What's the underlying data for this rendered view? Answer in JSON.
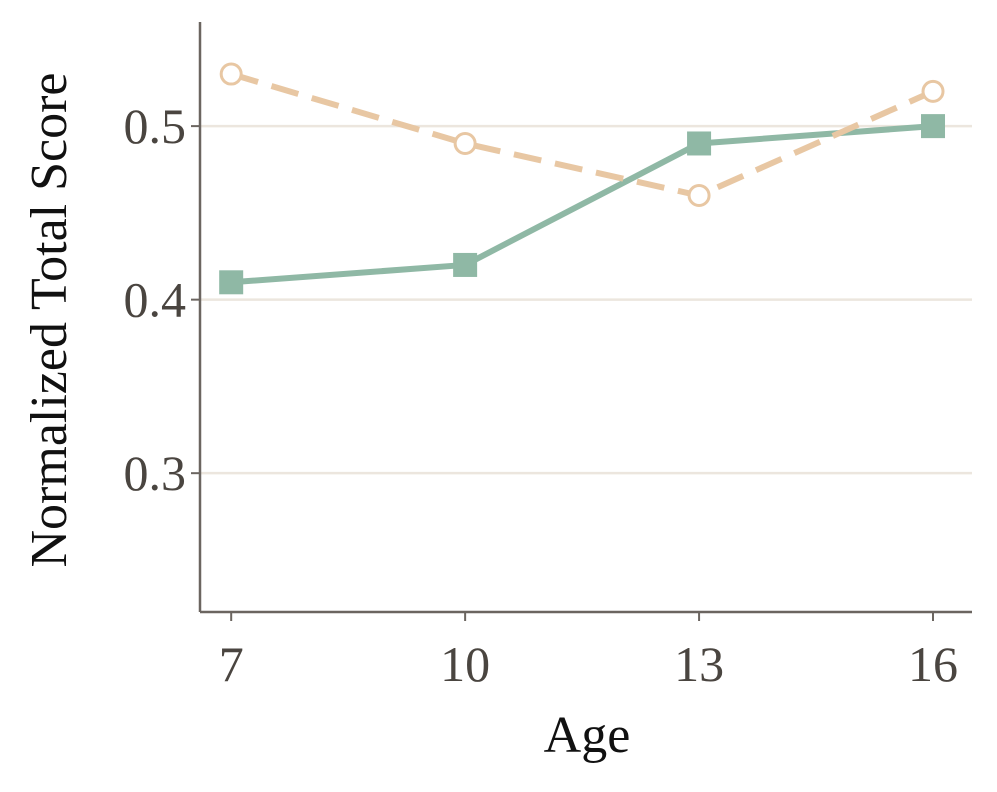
{
  "chart_data": {
    "type": "line",
    "title": "",
    "xlabel": "Age",
    "ylabel": "Normalized Total Score",
    "x": [
      7,
      10,
      13,
      16
    ],
    "xlim": [
      6.6,
      16.5
    ],
    "ylim": [
      0.22,
      0.56
    ],
    "xticks": [
      "7",
      "10",
      "13",
      "16"
    ],
    "yticks": [
      0.3,
      0.4,
      0.5
    ],
    "ytick_labels": [
      "0.3",
      "0.4",
      "0.5"
    ],
    "grid": "horizontal",
    "series": [
      {
        "values": [
          0.41,
          0.42,
          0.49,
          0.5
        ],
        "color": "#8fb8a5",
        "line": "solid",
        "marker": "filled-square"
      },
      {
        "values": [
          0.53,
          0.49,
          0.46,
          0.52
        ],
        "color": "#e8c7a3",
        "line": "dashed",
        "marker": "hollow-circle"
      }
    ],
    "colors": {
      "axis": "#6b6560",
      "grid": "#ece6de",
      "tick_text": "#4a4540",
      "label_text": "#111111"
    }
  }
}
